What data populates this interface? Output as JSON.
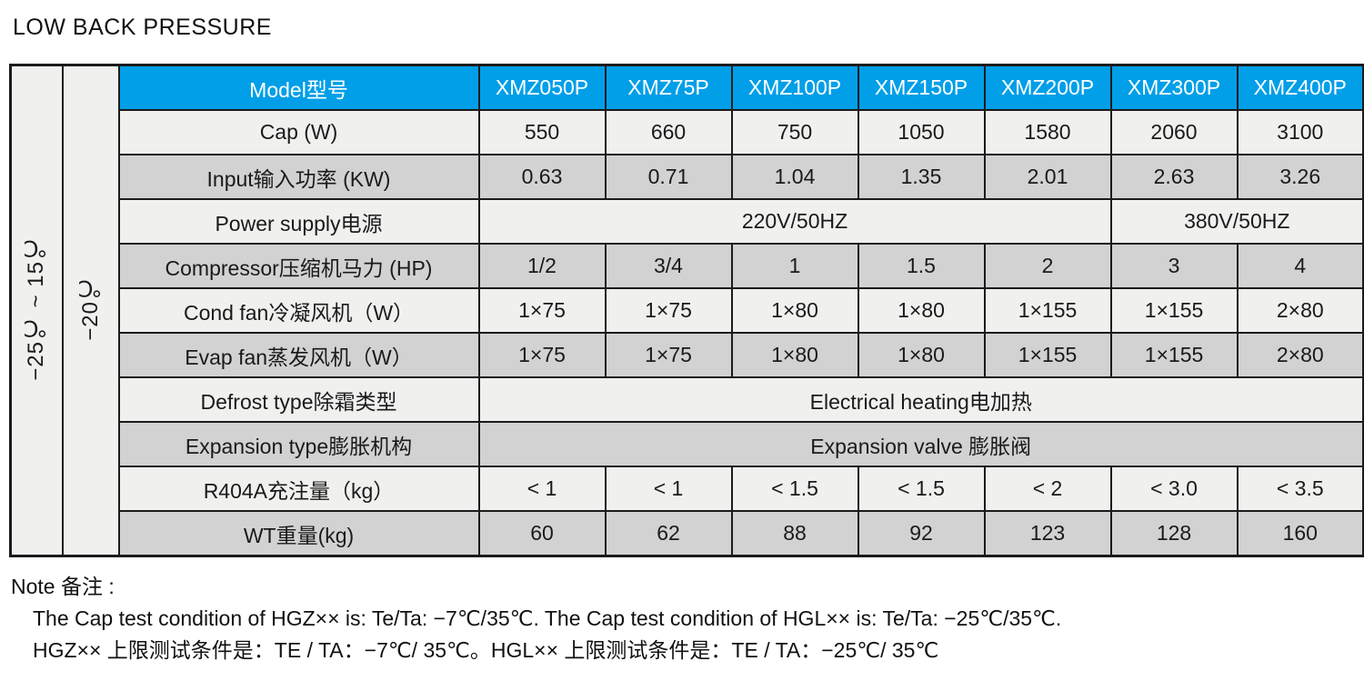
{
  "page_title": "LOW BACK PRESSURE",
  "colors": {
    "header_blue": "#009FE8",
    "row_light": "#F0F0EF",
    "row_dark": "#D2D2D2",
    "border": "#1B1B1B"
  },
  "table": {
    "temp_range_label": "−25℃ ~ 15℃",
    "evap_temp_label": "−20℃",
    "header": {
      "label": "Model型号",
      "models": [
        "XMZ050P",
        "XMZ75P",
        "XMZ100P",
        "XMZ150P",
        "XMZ200P",
        "XMZ300P",
        "XMZ400P"
      ]
    },
    "rows": [
      {
        "label": "Cap (W)",
        "shade": "light",
        "cells": [
          "550",
          "660",
          "750",
          "1050",
          "1580",
          "2060",
          "3100"
        ]
      },
      {
        "label": "Input输入功率 (KW)",
        "shade": "dark",
        "cells": [
          "0.63",
          "0.71",
          "1.04",
          "1.35",
          "2.01",
          "2.63",
          "3.26"
        ]
      },
      {
        "label": "Power supply电源",
        "shade": "light",
        "cells": [
          {
            "t": "220V/50HZ",
            "span": 5
          },
          {
            "t": "380V/50HZ",
            "span": 2
          }
        ]
      },
      {
        "label": "Compressor压缩机马力 (HP)",
        "shade": "dark",
        "cells": [
          "1/2",
          "3/4",
          "1",
          "1.5",
          "2",
          "3",
          "4"
        ]
      },
      {
        "label": "Cond fan冷凝风机（W）",
        "shade": "light",
        "cells": [
          "1×75",
          "1×75",
          "1×80",
          "1×80",
          "1×155",
          "1×155",
          "2×80"
        ]
      },
      {
        "label": "Evap fan蒸发风机（W）",
        "shade": "dark",
        "cells": [
          "1×75",
          "1×75",
          "1×80",
          "1×80",
          "1×155",
          "1×155",
          "2×80"
        ]
      },
      {
        "label": "Defrost type除霜类型",
        "shade": "light",
        "cells": [
          {
            "t": "Electrical heating电加热",
            "span": 7
          }
        ]
      },
      {
        "label": "Expansion type膨胀机构",
        "shade": "dark",
        "cells": [
          {
            "t": "Expansion valve 膨胀阀",
            "span": 7
          }
        ]
      },
      {
        "label": "R404A充注量（kg）",
        "shade": "light",
        "cells": [
          "< 1",
          "< 1",
          "< 1.5",
          "< 1.5",
          "< 2",
          "< 3.0",
          "< 3.5"
        ]
      },
      {
        "label": "WT重量(kg)",
        "shade": "dark",
        "cells": [
          "60",
          "62",
          "88",
          "92",
          "123",
          "128",
          "160"
        ]
      }
    ]
  },
  "note": {
    "title": "Note 备注 :",
    "line_en": "The Cap test condition of HGZ×× is: Te/Ta:  −7℃/35℃. The Cap test condition of HGL×× is: Te/Ta:  −25℃/35℃.",
    "line_zh": "HGZ×× 上限测试条件是：TE / TA：−7℃/ 35℃。HGL×× 上限测试条件是：TE / TA：−25℃/ 35℃"
  }
}
